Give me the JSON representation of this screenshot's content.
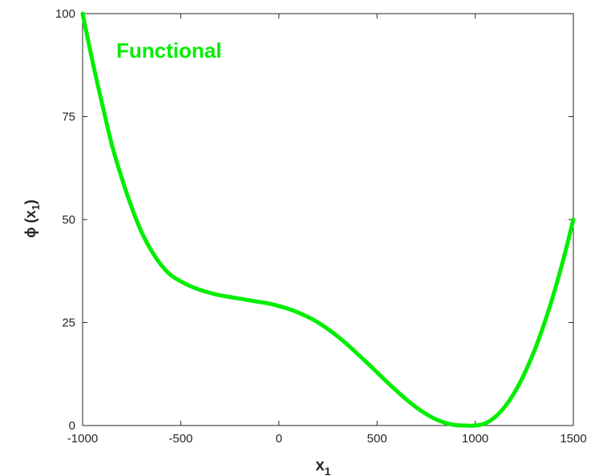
{
  "chart_data": {
    "type": "line",
    "title": "",
    "xlabel_main": "x",
    "xlabel_sub": "1",
    "ylabel_main": "ϕ (x",
    "ylabel_sub": "1",
    "ylabel_end": ")",
    "xlim": [
      -1000,
      1500
    ],
    "ylim": [
      0,
      100
    ],
    "xticks": [
      -1000,
      -500,
      0,
      500,
      1000,
      1500
    ],
    "xtick_labels": [
      "-1000",
      "-500",
      "0",
      "500",
      "1000",
      "1500"
    ],
    "yticks": [
      0,
      25,
      50,
      75,
      100
    ],
    "ytick_labels": [
      "0",
      "25",
      "50",
      "75",
      "100"
    ],
    "grid": false,
    "annotation": "Functional",
    "series": [
      {
        "color": "#00ee00",
        "x": [
          -1000,
          -950,
          -900,
          -850,
          -800,
          -750,
          -700,
          -650,
          -600,
          -550,
          -500,
          -450,
          -400,
          -350,
          -300,
          -250,
          -200,
          -150,
          -100,
          -50,
          0,
          50,
          100,
          150,
          200,
          250,
          300,
          350,
          400,
          450,
          500,
          550,
          600,
          650,
          700,
          750,
          800,
          850,
          900,
          950,
          1000,
          1050,
          1100,
          1150,
          1200,
          1250,
          1300,
          1350,
          1400,
          1450,
          1500
        ],
        "y": [
          100,
          88.5,
          78,
          68,
          60,
          53,
          47,
          42.5,
          39,
          36.5,
          35,
          33.8,
          32.9,
          32.2,
          31.6,
          31.2,
          30.8,
          30.4,
          30.0,
          29.6,
          29.0,
          28.3,
          27.4,
          26.3,
          25.0,
          23.4,
          21.6,
          19.6,
          17.4,
          15.2,
          12.9,
          10.6,
          8.4,
          6.3,
          4.4,
          2.8,
          1.5,
          0.6,
          0.1,
          0.0,
          0.0,
          0.5,
          2.0,
          4.5,
          8.0,
          12.5,
          18.0,
          24.5,
          32.0,
          40.5,
          50.0
        ]
      }
    ]
  }
}
